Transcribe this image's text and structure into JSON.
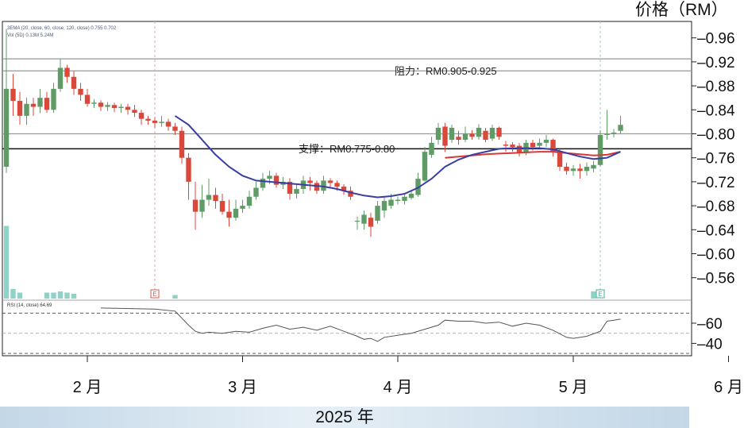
{
  "price_unit": "价格（RM）",
  "year_label": "2025 年",
  "indicator_text": {
    "ma_legend": "3EMA (20, close, 60, close, 120, close)  0.755  0.702",
    "vol_legend": "Vol (5D)  0.13M  5.24M",
    "rsi_legend": "RSI (14, close)  64.69"
  },
  "annotations": {
    "resistance": "阻力：RM0.905-0.925",
    "support": "支撑：RM0.775-0.80"
  },
  "event_markers": [
    "E",
    "E"
  ],
  "colors": {
    "up": "#5f9c65",
    "down": "#d8493c",
    "ema_fast": "#3a3ea3",
    "ema_slow": "#d8383a",
    "volume": "#8fd3c8",
    "rsi": "#555555"
  },
  "chart_data": [
    {
      "type": "candlestick",
      "title": "",
      "xlabel": "2025 年",
      "ylabel": "价格（RM）",
      "x_ticks": [
        "2 月",
        "3 月",
        "4 月",
        "5 月",
        "6 月"
      ],
      "x_tick_day": [
        20,
        43,
        66,
        92,
        115
      ],
      "y_ticks": [
        "0.96",
        "0.92",
        "0.88",
        "0.84",
        "0.80",
        "0.76",
        "0.72",
        "0.68",
        "0.64",
        "0.60",
        "0.56"
      ],
      "ylim": [
        0.533,
        0.995
      ],
      "xlim": [
        0,
        118
      ],
      "resistance_lines": [
        0.925,
        0.905
      ],
      "support_lines": [
        0.8,
        0.775
      ],
      "candles": [
        {
          "d": 8,
          "o": 0.745,
          "c": 0.875,
          "h": 0.975,
          "l": 0.735
        },
        {
          "d": 9,
          "o": 0.875,
          "c": 0.855,
          "h": 0.9,
          "l": 0.83
        },
        {
          "d": 10,
          "o": 0.855,
          "c": 0.83,
          "h": 0.87,
          "l": 0.815
        },
        {
          "d": 11,
          "o": 0.83,
          "c": 0.85,
          "h": 0.86,
          "l": 0.815
        },
        {
          "d": 12,
          "o": 0.85,
          "c": 0.845,
          "h": 0.86,
          "l": 0.83
        },
        {
          "d": 13,
          "o": 0.845,
          "c": 0.86,
          "h": 0.875,
          "l": 0.835
        },
        {
          "d": 14,
          "o": 0.86,
          "c": 0.84,
          "h": 0.87,
          "l": 0.835
        },
        {
          "d": 15,
          "o": 0.84,
          "c": 0.875,
          "h": 0.885,
          "l": 0.835
        },
        {
          "d": 16,
          "o": 0.875,
          "c": 0.91,
          "h": 0.925,
          "l": 0.87
        },
        {
          "d": 17,
          "o": 0.91,
          "c": 0.895,
          "h": 0.915,
          "l": 0.885
        },
        {
          "d": 18,
          "o": 0.895,
          "c": 0.875,
          "h": 0.905,
          "l": 0.865
        },
        {
          "d": 19,
          "o": 0.875,
          "c": 0.865,
          "h": 0.885,
          "l": 0.855
        },
        {
          "d": 20,
          "o": 0.865,
          "c": 0.85,
          "h": 0.875,
          "l": 0.845
        },
        {
          "d": 21,
          "o": 0.85,
          "c": 0.852,
          "h": 0.858,
          "l": 0.843
        },
        {
          "d": 22,
          "o": 0.852,
          "c": 0.845,
          "h": 0.856,
          "l": 0.838
        },
        {
          "d": 23,
          "o": 0.845,
          "c": 0.848,
          "h": 0.853,
          "l": 0.838
        },
        {
          "d": 24,
          "o": 0.848,
          "c": 0.843,
          "h": 0.852,
          "l": 0.836
        },
        {
          "d": 25,
          "o": 0.843,
          "c": 0.845,
          "h": 0.85,
          "l": 0.835
        },
        {
          "d": 26,
          "o": 0.845,
          "c": 0.84,
          "h": 0.85,
          "l": 0.832
        },
        {
          "d": 27,
          "o": 0.84,
          "c": 0.835,
          "h": 0.848,
          "l": 0.828
        },
        {
          "d": 28,
          "o": 0.835,
          "c": 0.825,
          "h": 0.84,
          "l": 0.815
        },
        {
          "d": 29,
          "o": 0.825,
          "c": 0.822,
          "h": 0.83,
          "l": 0.815
        },
        {
          "d": 30,
          "o": 0.822,
          "c": 0.818,
          "h": 0.828,
          "l": 0.81
        },
        {
          "d": 31,
          "o": 0.818,
          "c": 0.82,
          "h": 0.83,
          "l": 0.812
        },
        {
          "d": 32,
          "o": 0.82,
          "c": 0.812,
          "h": 0.825,
          "l": 0.805
        },
        {
          "d": 33,
          "o": 0.812,
          "c": 0.805,
          "h": 0.818,
          "l": 0.798
        },
        {
          "d": 34,
          "o": 0.805,
          "c": 0.76,
          "h": 0.812,
          "l": 0.75
        },
        {
          "d": 35,
          "o": 0.76,
          "c": 0.72,
          "h": 0.768,
          "l": 0.69
        },
        {
          "d": 36,
          "o": 0.69,
          "c": 0.67,
          "h": 0.72,
          "l": 0.64
        },
        {
          "d": 37,
          "o": 0.67,
          "c": 0.69,
          "h": 0.715,
          "l": 0.66
        },
        {
          "d": 38,
          "o": 0.69,
          "c": 0.698,
          "h": 0.725,
          "l": 0.68
        },
        {
          "d": 39,
          "o": 0.698,
          "c": 0.688,
          "h": 0.71,
          "l": 0.675
        },
        {
          "d": 40,
          "o": 0.688,
          "c": 0.67,
          "h": 0.7,
          "l": 0.665
        },
        {
          "d": 41,
          "o": 0.67,
          "c": 0.66,
          "h": 0.69,
          "l": 0.645
        },
        {
          "d": 42,
          "o": 0.66,
          "c": 0.675,
          "h": 0.69,
          "l": 0.655
        },
        {
          "d": 43,
          "o": 0.675,
          "c": 0.68,
          "h": 0.69,
          "l": 0.668
        },
        {
          "d": 44,
          "o": 0.68,
          "c": 0.695,
          "h": 0.705,
          "l": 0.675
        },
        {
          "d": 45,
          "o": 0.695,
          "c": 0.71,
          "h": 0.72,
          "l": 0.69
        },
        {
          "d": 46,
          "o": 0.71,
          "c": 0.725,
          "h": 0.735,
          "l": 0.705
        },
        {
          "d": 47,
          "o": 0.725,
          "c": 0.73,
          "h": 0.738,
          "l": 0.716
        },
        {
          "d": 48,
          "o": 0.73,
          "c": 0.715,
          "h": 0.735,
          "l": 0.71
        },
        {
          "d": 49,
          "o": 0.715,
          "c": 0.72,
          "h": 0.728,
          "l": 0.708
        },
        {
          "d": 50,
          "o": 0.72,
          "c": 0.7,
          "h": 0.726,
          "l": 0.69
        },
        {
          "d": 51,
          "o": 0.7,
          "c": 0.708,
          "h": 0.715,
          "l": 0.692
        },
        {
          "d": 52,
          "o": 0.708,
          "c": 0.722,
          "h": 0.73,
          "l": 0.7
        },
        {
          "d": 53,
          "o": 0.722,
          "c": 0.718,
          "h": 0.728,
          "l": 0.705
        },
        {
          "d": 54,
          "o": 0.718,
          "c": 0.705,
          "h": 0.722,
          "l": 0.7
        },
        {
          "d": 55,
          "o": 0.705,
          "c": 0.722,
          "h": 0.73,
          "l": 0.7
        },
        {
          "d": 56,
          "o": 0.722,
          "c": 0.718,
          "h": 0.726,
          "l": 0.71
        },
        {
          "d": 57,
          "o": 0.718,
          "c": 0.712,
          "h": 0.722,
          "l": 0.705
        },
        {
          "d": 58,
          "o": 0.712,
          "c": 0.705,
          "h": 0.716,
          "l": 0.698
        },
        {
          "d": 59,
          "o": 0.705,
          "c": 0.695,
          "h": 0.712,
          "l": 0.69
        },
        {
          "d": 60,
          "o": 0.655,
          "c": 0.655,
          "h": 0.662,
          "l": 0.64
        },
        {
          "d": 61,
          "o": 0.65,
          "c": 0.665,
          "h": 0.672,
          "l": 0.64
        },
        {
          "d": 62,
          "o": 0.66,
          "c": 0.645,
          "h": 0.668,
          "l": 0.628
        },
        {
          "d": 63,
          "o": 0.655,
          "c": 0.68,
          "h": 0.688,
          "l": 0.65
        },
        {
          "d": 64,
          "o": 0.672,
          "c": 0.688,
          "h": 0.695,
          "l": 0.66
        },
        {
          "d": 65,
          "o": 0.68,
          "c": 0.69,
          "h": 0.7,
          "l": 0.675
        },
        {
          "d": 66,
          "o": 0.688,
          "c": 0.69,
          "h": 0.695,
          "l": 0.682
        },
        {
          "d": 67,
          "o": 0.688,
          "c": 0.695,
          "h": 0.7,
          "l": 0.682
        },
        {
          "d": 68,
          "o": 0.693,
          "c": 0.7,
          "h": 0.706,
          "l": 0.69
        },
        {
          "d": 69,
          "o": 0.698,
          "c": 0.725,
          "h": 0.735,
          "l": 0.695
        },
        {
          "d": 70,
          "o": 0.722,
          "c": 0.77,
          "h": 0.778,
          "l": 0.72
        },
        {
          "d": 71,
          "o": 0.765,
          "c": 0.785,
          "h": 0.795,
          "l": 0.76
        },
        {
          "d": 72,
          "o": 0.79,
          "c": 0.81,
          "h": 0.818,
          "l": 0.782
        },
        {
          "d": 73,
          "o": 0.812,
          "c": 0.78,
          "h": 0.818,
          "l": 0.77
        },
        {
          "d": 74,
          "o": 0.79,
          "c": 0.81,
          "h": 0.815,
          "l": 0.785
        },
        {
          "d": 75,
          "o": 0.795,
          "c": 0.79,
          "h": 0.805,
          "l": 0.782
        },
        {
          "d": 76,
          "o": 0.79,
          "c": 0.8,
          "h": 0.812,
          "l": 0.786
        },
        {
          "d": 77,
          "o": 0.8,
          "c": 0.795,
          "h": 0.806,
          "l": 0.79
        },
        {
          "d": 78,
          "o": 0.795,
          "c": 0.81,
          "h": 0.816,
          "l": 0.79
        },
        {
          "d": 79,
          "o": 0.805,
          "c": 0.79,
          "h": 0.81,
          "l": 0.786
        },
        {
          "d": 80,
          "o": 0.792,
          "c": 0.81,
          "h": 0.815,
          "l": 0.788
        },
        {
          "d": 81,
          "o": 0.81,
          "c": 0.795,
          "h": 0.812,
          "l": 0.79
        },
        {
          "d": 82,
          "o": 0.782,
          "c": 0.78,
          "h": 0.788,
          "l": 0.77
        },
        {
          "d": 83,
          "o": 0.782,
          "c": 0.778,
          "h": 0.786,
          "l": 0.77
        },
        {
          "d": 84,
          "o": 0.78,
          "c": 0.768,
          "h": 0.785,
          "l": 0.762
        },
        {
          "d": 85,
          "o": 0.768,
          "c": 0.785,
          "h": 0.79,
          "l": 0.764
        },
        {
          "d": 86,
          "o": 0.785,
          "c": 0.778,
          "h": 0.79,
          "l": 0.772
        },
        {
          "d": 87,
          "o": 0.78,
          "c": 0.785,
          "h": 0.792,
          "l": 0.775
        },
        {
          "d": 88,
          "o": 0.785,
          "c": 0.79,
          "h": 0.798,
          "l": 0.778
        },
        {
          "d": 89,
          "o": 0.79,
          "c": 0.77,
          "h": 0.792,
          "l": 0.762
        },
        {
          "d": 90,
          "o": 0.77,
          "c": 0.745,
          "h": 0.775,
          "l": 0.738
        },
        {
          "d": 91,
          "o": 0.745,
          "c": 0.738,
          "h": 0.752,
          "l": 0.732
        },
        {
          "d": 92,
          "o": 0.738,
          "c": 0.742,
          "h": 0.748,
          "l": 0.73
        },
        {
          "d": 93,
          "o": 0.742,
          "c": 0.738,
          "h": 0.75,
          "l": 0.725
        },
        {
          "d": 94,
          "o": 0.738,
          "c": 0.745,
          "h": 0.752,
          "l": 0.73
        },
        {
          "d": 95,
          "o": 0.742,
          "c": 0.748,
          "h": 0.755,
          "l": 0.736
        },
        {
          "d": 96,
          "o": 0.748,
          "c": 0.798,
          "h": 0.806,
          "l": 0.745
        },
        {
          "d": 97,
          "o": 0.798,
          "c": 0.8,
          "h": 0.84,
          "l": 0.79
        },
        {
          "d": 98,
          "o": 0.8,
          "c": 0.802,
          "h": 0.808,
          "l": 0.794
        },
        {
          "d": 99,
          "o": 0.805,
          "c": 0.815,
          "h": 0.83,
          "l": 0.8
        }
      ],
      "ema_fast": [
        [
          33,
          0.83
        ],
        [
          35,
          0.815
        ],
        [
          37,
          0.79
        ],
        [
          39,
          0.765
        ],
        [
          41,
          0.745
        ],
        [
          43,
          0.73
        ],
        [
          45,
          0.722
        ],
        [
          47,
          0.72
        ],
        [
          49,
          0.718
        ],
        [
          51,
          0.716
        ],
        [
          53,
          0.714
        ],
        [
          55,
          0.712
        ],
        [
          57,
          0.708
        ],
        [
          59,
          0.702
        ],
        [
          61,
          0.697
        ],
        [
          63,
          0.694
        ],
        [
          65,
          0.696
        ],
        [
          67,
          0.7
        ],
        [
          69,
          0.71
        ],
        [
          71,
          0.725
        ],
        [
          73,
          0.745
        ],
        [
          75,
          0.757
        ],
        [
          77,
          0.765
        ],
        [
          79,
          0.77
        ],
        [
          81,
          0.775
        ],
        [
          83,
          0.776
        ],
        [
          85,
          0.776
        ],
        [
          87,
          0.776
        ],
        [
          89,
          0.774
        ],
        [
          91,
          0.768
        ],
        [
          93,
          0.762
        ],
        [
          95,
          0.758
        ],
        [
          97,
          0.76
        ],
        [
          99,
          0.77
        ]
      ],
      "ema_slow": [
        [
          73,
          0.76
        ],
        [
          75,
          0.762
        ],
        [
          77,
          0.764
        ],
        [
          79,
          0.766
        ],
        [
          81,
          0.767
        ],
        [
          83,
          0.768
        ],
        [
          85,
          0.769
        ],
        [
          87,
          0.77
        ],
        [
          89,
          0.77
        ],
        [
          91,
          0.768
        ],
        [
          93,
          0.766
        ],
        [
          95,
          0.764
        ],
        [
          97,
          0.765
        ],
        [
          99,
          0.77
        ]
      ],
      "volume": [
        [
          8,
          0.61
        ],
        [
          9,
          0.08
        ],
        [
          10,
          0.05
        ],
        [
          14,
          0.05
        ],
        [
          15,
          0.05
        ],
        [
          16,
          0.06
        ],
        [
          17,
          0.05
        ],
        [
          18,
          0.04
        ],
        [
          33,
          0.03
        ],
        [
          95,
          0.06
        ]
      ],
      "event_days": [
        30,
        96
      ]
    },
    {
      "type": "line",
      "title": "",
      "xlabel": "",
      "ylabel": "",
      "y_ticks": [
        "60",
        "40"
      ],
      "ylim": [
        15,
        85
      ],
      "reference_lines": [
        70,
        50,
        30
      ],
      "x": [
        22,
        30,
        33,
        35,
        36,
        37,
        38,
        40,
        42,
        44,
        46,
        48,
        50,
        52,
        54,
        56,
        58,
        60,
        61,
        62,
        63,
        64,
        66,
        68,
        70,
        72,
        73,
        75,
        77,
        79,
        81,
        83,
        85,
        87,
        89,
        91,
        92,
        94,
        96,
        97,
        98,
        99
      ],
      "values": [
        75,
        74,
        72,
        58,
        52,
        50,
        51,
        50,
        52,
        51,
        55,
        58,
        54,
        56,
        53,
        57,
        52,
        47,
        44,
        45,
        42,
        46,
        48,
        50,
        54,
        58,
        63,
        62,
        62,
        60,
        61,
        57,
        60,
        58,
        53,
        46,
        45,
        47,
        52,
        62,
        63,
        64
      ]
    }
  ]
}
